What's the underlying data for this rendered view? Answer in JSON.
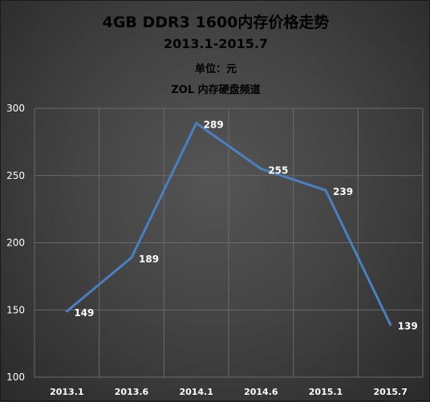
{
  "chart_data": {
    "type": "line",
    "title": "4GB DDR3 1600内存价格走势",
    "subtitle": "2013.1-2015.7",
    "unit_label": "单位：元",
    "source_label": "ZOL 内存硬盘频道",
    "categories": [
      "2013.1",
      "2013.6",
      "2014.1",
      "2014.6",
      "2015.1",
      "2015.7"
    ],
    "series": [
      {
        "values": [
          149,
          189,
          289,
          255,
          239,
          139
        ]
      }
    ],
    "yticks": [
      "100",
      "150",
      "200",
      "250",
      "300"
    ],
    "ylim": [
      100,
      300
    ],
    "xlabel": "",
    "ylabel": "",
    "grid": true,
    "colors": {
      "line": "#4a7fc1",
      "grid": "#6a6a6a",
      "text": "#ffffff"
    }
  }
}
